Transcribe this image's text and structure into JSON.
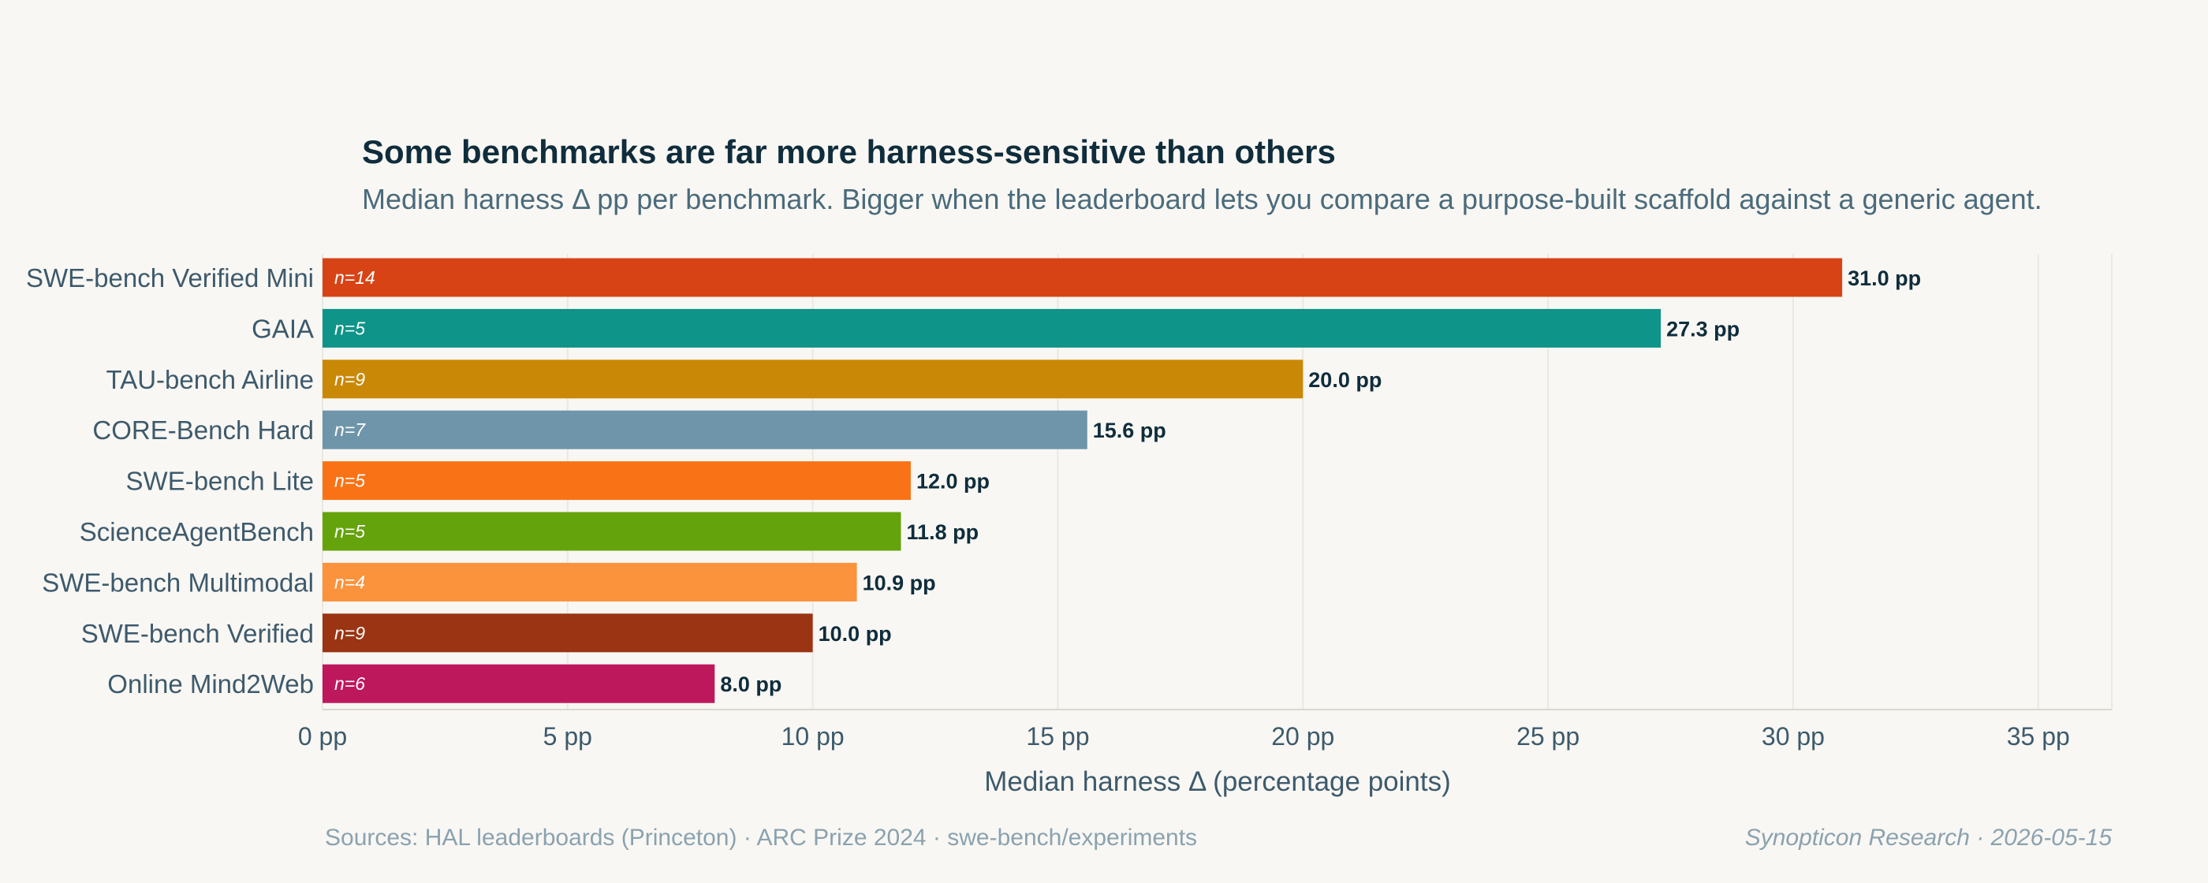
{
  "chart_data": {
    "type": "bar",
    "orientation": "horizontal",
    "title": "Some benchmarks are far more harness-sensitive than others",
    "subtitle": "Median harness Δ pp per benchmark. Bigger when the leaderboard lets you compare a purpose-built scaffold against a generic agent.",
    "xlabel": "Median harness Δ (percentage points)",
    "ylabel": "",
    "xlim": [
      0,
      36.5
    ],
    "xticks": [
      0,
      5,
      10,
      15,
      20,
      25,
      30,
      35
    ],
    "tick_labels": [
      "0 pp",
      "5 pp",
      "10 pp",
      "15 pp",
      "20 pp",
      "25 pp",
      "30 pp",
      "35 pp"
    ],
    "grid": "vertical",
    "categories": [
      "SWE-bench Verified Mini",
      "GAIA",
      "TAU-bench Airline",
      "CORE-Bench Hard",
      "SWE-bench Lite",
      "ScienceAgentBench",
      "SWE-bench Multimodal",
      "SWE-bench Verified",
      "Online Mind2Web"
    ],
    "values": [
      31.0,
      27.3,
      20.0,
      15.6,
      12.0,
      11.8,
      10.9,
      10.0,
      8.0
    ],
    "value_labels": [
      "31.0 pp",
      "27.3 pp",
      "20.0 pp",
      "15.6 pp",
      "12.0 pp",
      "11.8 pp",
      "10.9 pp",
      "10.0 pp",
      "8.0 pp"
    ],
    "n_labels": [
      "n=14",
      "n=5",
      "n=9",
      "n=7",
      "n=5",
      "n=5",
      "n=4",
      "n=9",
      "n=6"
    ],
    "colors": [
      "#d84315",
      "#0e9488",
      "#c98806",
      "#6e95aa",
      "#f97316",
      "#65a30d",
      "#fb923c",
      "#9a3412",
      "#be185d"
    ]
  },
  "footer": {
    "sources": "Sources: HAL leaderboards (Princeton) · ARC Prize 2024 · swe-bench/experiments",
    "credit": "Synopticon Research · 2026-05-15"
  },
  "colors": {
    "background": "#f9f7f3",
    "grid": "#ebe8e2",
    "title": "#0f2d3c"
  }
}
